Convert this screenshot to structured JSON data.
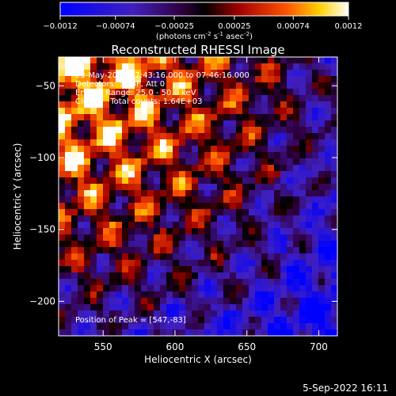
{
  "colorbar": {
    "ticks": [
      "-0.0012",
      "-0.00074",
      "-0.00025",
      "0.00025",
      "0.00074",
      "0.0012"
    ],
    "unit_label_parts": [
      "(photons cm",
      "-2",
      " s",
      "-1",
      " asec",
      "-2",
      ")"
    ]
  },
  "chart_data": {
    "type": "heatmap",
    "title": "Reconstructed RHESSI Image",
    "xlabel": "Heliocentric X (arcsec)",
    "ylabel": "Heliocentric Y (arcsec)",
    "xlim": [
      519,
      713
    ],
    "ylim": [
      -224,
      -30
    ],
    "xticks": [
      550,
      600,
      650,
      700
    ],
    "yticks": [
      -50,
      -100,
      -150,
      -200
    ],
    "xtick_labels": [
      "550",
      "600",
      "650",
      "700"
    ],
    "ytick_labels": [
      "−50",
      "−100",
      "−150",
      "−200"
    ],
    "color_range": [
      -0.0012,
      0.0012
    ],
    "colormap": "blue-purple-red-yellow-white",
    "peak_position": [
      547,
      -83
    ],
    "annotations": [
      "23-May-2016 07:43:16.000 to 07:46:16.000",
      "Detectors: 3F 8F, Att 0",
      "Energy Range: 25.0 - 50.0 keV",
      "Clean     Total counts: 1.64E+03"
    ],
    "peak_label": "Position of Peak = [547,-83]"
  },
  "footer": {
    "timestamp": "5-Sep-2022 16:11"
  }
}
